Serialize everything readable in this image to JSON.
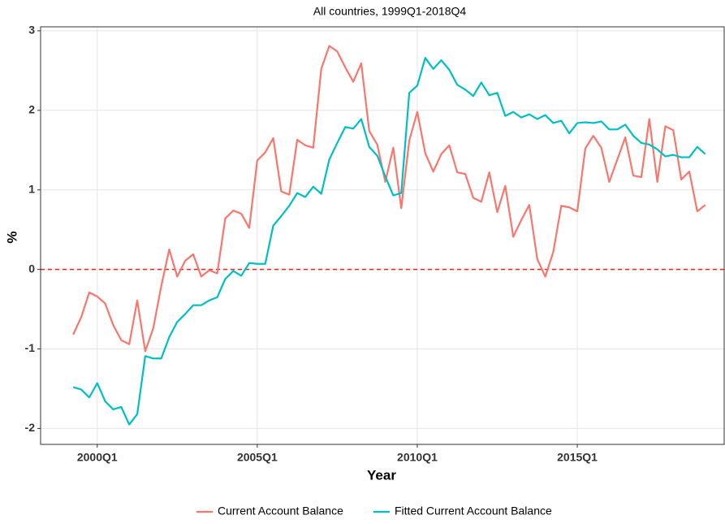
{
  "chart_data": {
    "type": "line",
    "title": "All countries, 1999Q1-2018Q4",
    "xlabel": "Year",
    "ylabel": "%",
    "x": [
      1999.25,
      1999.5,
      1999.75,
      2000,
      2000.25,
      2000.5,
      2000.75,
      2001,
      2001.25,
      2001.5,
      2001.75,
      2002,
      2002.25,
      2002.5,
      2002.75,
      2003,
      2003.25,
      2003.5,
      2003.75,
      2004,
      2004.25,
      2004.5,
      2004.75,
      2005,
      2005.25,
      2005.5,
      2005.75,
      2006,
      2006.25,
      2006.5,
      2006.75,
      2007,
      2007.25,
      2007.5,
      2007.75,
      2008,
      2008.25,
      2008.5,
      2008.75,
      2009,
      2009.25,
      2009.5,
      2009.75,
      2010,
      2010.25,
      2010.5,
      2010.75,
      2011,
      2011.25,
      2011.5,
      2011.75,
      2012,
      2012.25,
      2012.5,
      2012.75,
      2013,
      2013.25,
      2013.5,
      2013.75,
      2014,
      2014.25,
      2014.5,
      2014.75,
      2015,
      2015.25,
      2015.5,
      2015.75,
      2016,
      2016.25,
      2016.5,
      2016.75,
      2017,
      2017.25,
      2017.5,
      2017.75,
      2018,
      2018.25,
      2018.5,
      2018.75,
      2019
    ],
    "series": [
      {
        "name": "Current Account Balance",
        "color": "#F8766D",
        "values": [
          -0.82,
          -0.6,
          -0.29,
          -0.34,
          -0.43,
          -0.7,
          -0.89,
          -0.94,
          -0.39,
          -1.03,
          -0.74,
          -0.21,
          0.25,
          -0.09,
          0.11,
          0.19,
          -0.09,
          -0.01,
          -0.05,
          0.64,
          0.74,
          0.7,
          0.52,
          1.37,
          1.47,
          1.65,
          0.98,
          0.94,
          1.63,
          1.56,
          1.53,
          2.52,
          2.81,
          2.74,
          2.54,
          2.36,
          2.59,
          1.74,
          1.57,
          1.1,
          1.53,
          0.77,
          1.62,
          1.98,
          1.46,
          1.23,
          1.45,
          1.56,
          1.22,
          1.2,
          0.9,
          0.85,
          1.22,
          0.72,
          1.05,
          0.41,
          0.62,
          0.81,
          0.13,
          -0.09,
          0.22,
          0.8,
          0.78,
          0.73,
          1.52,
          1.68,
          1.53,
          1.1,
          1.38,
          1.66,
          1.18,
          1.16,
          1.89,
          1.1,
          1.8,
          1.75,
          1.13,
          1.23,
          0.73,
          0.81
        ]
      },
      {
        "name": "Fitted Current Account Balance",
        "color": "#00BFC4",
        "values": [
          -1.48,
          -1.51,
          -1.61,
          -1.43,
          -1.66,
          -1.76,
          -1.73,
          -1.95,
          -1.82,
          -1.09,
          -1.12,
          -1.12,
          -0.85,
          -0.66,
          -0.56,
          -0.45,
          -0.45,
          -0.39,
          -0.35,
          -0.12,
          -0.02,
          -0.08,
          0.08,
          0.07,
          0.07,
          0.55,
          0.67,
          0.8,
          0.96,
          0.91,
          1.04,
          0.95,
          1.38,
          1.59,
          1.79,
          1.77,
          1.89,
          1.54,
          1.43,
          1.17,
          0.93,
          0.96,
          2.22,
          2.31,
          2.66,
          2.52,
          2.63,
          2.51,
          2.32,
          2.26,
          2.18,
          2.35,
          2.19,
          2.22,
          1.93,
          1.98,
          1.91,
          1.95,
          1.89,
          1.94,
          1.84,
          1.87,
          1.71,
          1.84,
          1.85,
          1.84,
          1.86,
          1.76,
          1.76,
          1.82,
          1.68,
          1.59,
          1.57,
          1.51,
          1.42,
          1.44,
          1.41,
          1.41,
          1.54,
          1.45
        ]
      }
    ],
    "xlim": [
      1998.23,
      2019.59
    ],
    "xticks": [
      {
        "value": 2000,
        "label": "2000Q1"
      },
      {
        "value": 2005,
        "label": "2005Q1"
      },
      {
        "value": 2010,
        "label": "2010Q1"
      },
      {
        "value": 2015,
        "label": "2015Q1"
      }
    ],
    "ylim": [
      -2.2,
      3.05
    ],
    "yticks": [
      -2,
      -1,
      0,
      1,
      2,
      3
    ],
    "hline": 0,
    "hline_color": "#e8231f",
    "grid": true,
    "legend": "bottom"
  }
}
